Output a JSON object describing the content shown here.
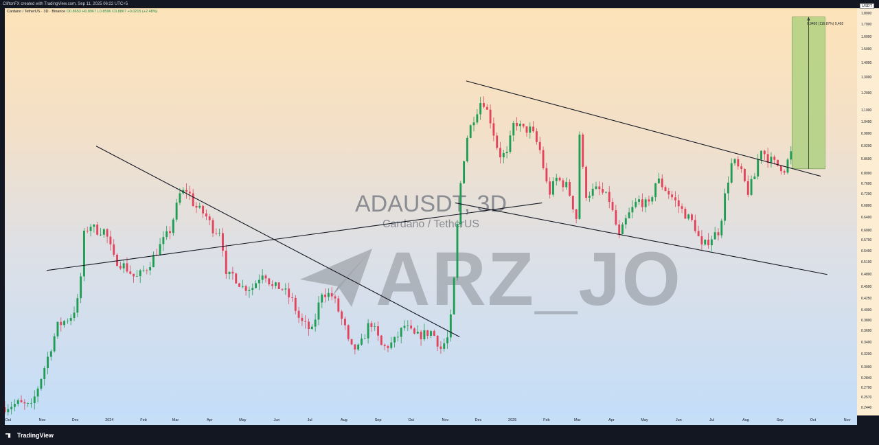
{
  "header": {
    "credit": "CliftonFX created with TradingView.com, Sep 11, 2025 06:22 UTC+5"
  },
  "legend": {
    "symbol": "Cardano / TetherUS · 3D · Binance",
    "ohlc": "O0.8653 H0.8967 L0.8596 C0.8867 +0.0215 (+2.48%)"
  },
  "watermark": {
    "title": "ADAUSDT, 3D",
    "subtitle": "Cardano / TetherUS",
    "brand": "ARZ_JO"
  },
  "measure": {
    "label": "0.9492 (116.87%) 9,492"
  },
  "price_axis": {
    "currency": "USDT",
    "ticks": [
      "1.8000",
      "1.7000",
      "1.6000",
      "1.5000",
      "1.4000",
      "1.3000",
      "1.2000",
      "1.1000",
      "1.0400",
      "0.9800",
      "0.9200",
      "0.8600",
      "0.8000",
      "0.7600",
      "0.7200",
      "0.6800",
      "0.6400",
      "0.6000",
      "0.5700",
      "0.5400",
      "0.5100",
      "0.4800",
      "0.4500",
      "0.4250",
      "0.4000",
      "0.3800",
      "0.3600",
      "0.3400",
      "0.3200",
      "0.3000",
      "0.2840",
      "0.2700",
      "0.2570",
      "0.2440"
    ]
  },
  "time_axis": {
    "labels": [
      "Oct",
      "Nov",
      "Dec",
      "2024",
      "Feb",
      "Mar",
      "Apr",
      "May",
      "Jun",
      "Jul",
      "Aug",
      "Sep",
      "Oct",
      "Nov",
      "Dec",
      "2025",
      "Feb",
      "Mar",
      "Apr",
      "May",
      "Jun",
      "Jul",
      "Aug",
      "Sep",
      "Oct",
      "Nov"
    ]
  },
  "footer": {
    "brand": "TradingView"
  },
  "colors": {
    "up": "#26a69a",
    "up_candle": "#1f9d55",
    "down": "#e2445c",
    "trendline": "#131722",
    "target_box": "#a5cf78"
  },
  "chart_data": {
    "type": "candlestick",
    "scale": "log",
    "ylim": [
      0.235,
      1.85
    ],
    "x_range": [
      "2023-09-28",
      "2025-11-10"
    ],
    "timeframe": "3D",
    "anchors": [
      [
        "2023-09-28",
        0.245
      ],
      [
        "2023-10-10",
        0.25
      ],
      [
        "2023-10-22",
        0.245
      ],
      [
        "2023-11-05",
        0.31
      ],
      [
        "2023-11-15",
        0.37
      ],
      [
        "2023-11-28",
        0.39
      ],
      [
        "2023-12-05",
        0.43
      ],
      [
        "2023-12-08",
        0.58
      ],
      [
        "2023-12-14",
        0.62
      ],
      [
        "2023-12-20",
        0.6
      ],
      [
        "2023-12-28",
        0.6
      ],
      [
        "2024-01-05",
        0.52
      ],
      [
        "2024-01-15",
        0.5
      ],
      [
        "2024-01-25",
        0.47
      ],
      [
        "2024-02-05",
        0.5
      ],
      [
        "2024-02-15",
        0.55
      ],
      [
        "2024-02-25",
        0.6
      ],
      [
        "2024-03-05",
        0.72
      ],
      [
        "2024-03-12",
        0.74
      ],
      [
        "2024-03-18",
        0.68
      ],
      [
        "2024-03-28",
        0.65
      ],
      [
        "2024-04-05",
        0.6
      ],
      [
        "2024-04-12",
        0.6
      ],
      [
        "2024-04-15",
        0.47
      ],
      [
        "2024-04-22",
        0.48
      ],
      [
        "2024-05-01",
        0.45
      ],
      [
        "2024-05-10",
        0.45
      ],
      [
        "2024-05-20",
        0.49
      ],
      [
        "2024-05-28",
        0.45
      ],
      [
        "2024-06-05",
        0.45
      ],
      [
        "2024-06-15",
        0.42
      ],
      [
        "2024-06-22",
        0.38
      ],
      [
        "2024-07-03",
        0.36
      ],
      [
        "2024-07-12",
        0.44
      ],
      [
        "2024-07-22",
        0.43
      ],
      [
        "2024-08-03",
        0.36
      ],
      [
        "2024-08-06",
        0.33
      ],
      [
        "2024-08-15",
        0.33
      ],
      [
        "2024-08-25",
        0.38
      ],
      [
        "2024-09-05",
        0.33
      ],
      [
        "2024-09-15",
        0.34
      ],
      [
        "2024-09-25",
        0.37
      ],
      [
        "2024-10-05",
        0.35
      ],
      [
        "2024-10-20",
        0.36
      ],
      [
        "2024-10-28",
        0.33
      ],
      [
        "2024-11-04",
        0.35
      ],
      [
        "2024-11-08",
        0.42
      ],
      [
        "2024-11-11",
        0.57
      ],
      [
        "2024-11-15",
        0.76
      ],
      [
        "2024-11-20",
        0.95
      ],
      [
        "2024-11-26",
        1.05
      ],
      [
        "2024-12-03",
        1.15
      ],
      [
        "2024-12-06",
        1.15
      ],
      [
        "2024-12-12",
        1.05
      ],
      [
        "2024-12-20",
        0.88
      ],
      [
        "2024-12-27",
        0.88
      ],
      [
        "2025-01-03",
        1.05
      ],
      [
        "2025-01-10",
        1.0
      ],
      [
        "2025-01-18",
        1.0
      ],
      [
        "2025-01-26",
        0.9
      ],
      [
        "2025-02-03",
        0.72
      ],
      [
        "2025-02-10",
        0.78
      ],
      [
        "2025-02-20",
        0.75
      ],
      [
        "2025-02-28",
        0.64
      ],
      [
        "2025-03-03",
        0.98
      ],
      [
        "2025-03-08",
        0.72
      ],
      [
        "2025-03-20",
        0.74
      ],
      [
        "2025-03-30",
        0.7
      ],
      [
        "2025-04-08",
        0.58
      ],
      [
        "2025-04-15",
        0.64
      ],
      [
        "2025-04-25",
        0.7
      ],
      [
        "2025-05-05",
        0.68
      ],
      [
        "2025-05-12",
        0.78
      ],
      [
        "2025-05-20",
        0.74
      ],
      [
        "2025-05-28",
        0.7
      ],
      [
        "2025-06-05",
        0.66
      ],
      [
        "2025-06-15",
        0.62
      ],
      [
        "2025-06-22",
        0.55
      ],
      [
        "2025-07-01",
        0.58
      ],
      [
        "2025-07-08",
        0.6
      ],
      [
        "2025-07-14",
        0.74
      ],
      [
        "2025-07-20",
        0.86
      ],
      [
        "2025-07-28",
        0.8
      ],
      [
        "2025-08-03",
        0.73
      ],
      [
        "2025-08-10",
        0.8
      ],
      [
        "2025-08-14",
        0.92
      ],
      [
        "2025-08-20",
        0.87
      ],
      [
        "2025-08-28",
        0.84
      ],
      [
        "2025-09-05",
        0.82
      ],
      [
        "2025-09-11",
        0.8867
      ]
    ],
    "trendlines": [
      {
        "from": [
          "2023-11-05",
          0.49
        ],
        "to": [
          "2025-01-28",
          0.69
        ]
      },
      {
        "from": [
          "2023-12-20",
          0.92
        ],
        "to": [
          "2024-11-14",
          0.35
        ]
      },
      {
        "from": [
          "2024-11-10",
          0.69
        ],
        "to": [
          "2025-10-14",
          0.48
        ]
      },
      {
        "from": [
          "2024-11-20",
          1.28
        ],
        "to": [
          "2025-10-08",
          0.79
        ]
      }
    ],
    "target_box": {
      "x0": "2025-09-12",
      "x1": "2025-10-12",
      "y0": 0.82,
      "y1": 1.77
    },
    "measure_text": "0.9492 (116.87%) 9,492"
  }
}
